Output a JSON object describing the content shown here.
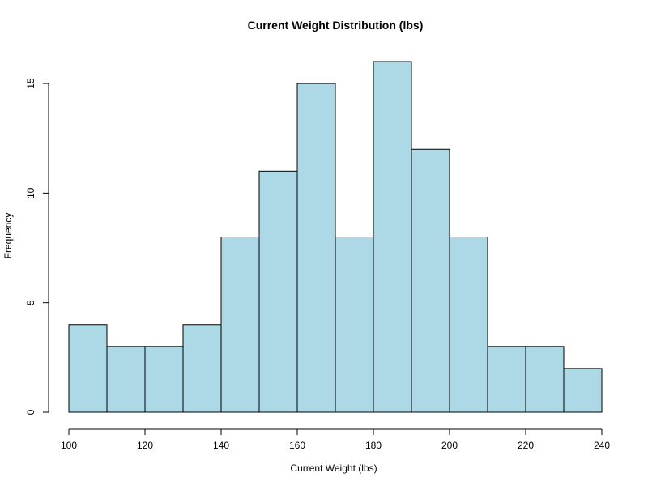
{
  "chart_data": {
    "type": "bar",
    "subtype": "histogram",
    "title": "Current Weight Distribution (lbs)",
    "xlabel": "Current Weight (lbs)",
    "ylabel": "Frequency",
    "bin_edges": [
      100,
      110,
      120,
      130,
      140,
      150,
      160,
      170,
      180,
      190,
      200,
      210,
      220,
      230,
      240
    ],
    "values": [
      4,
      3,
      3,
      4,
      8,
      11,
      15,
      8,
      16,
      12,
      8,
      3,
      3,
      2
    ],
    "xlim": [
      100,
      240
    ],
    "ylim": [
      0,
      16
    ],
    "x_ticks": [
      "100",
      "120",
      "140",
      "160",
      "180",
      "200",
      "220",
      "240"
    ],
    "y_ticks": [
      "0",
      "5",
      "10",
      "15"
    ],
    "bar_color": "#add8e6",
    "edge_color": "#000000",
    "grid": false,
    "legend": "none"
  }
}
